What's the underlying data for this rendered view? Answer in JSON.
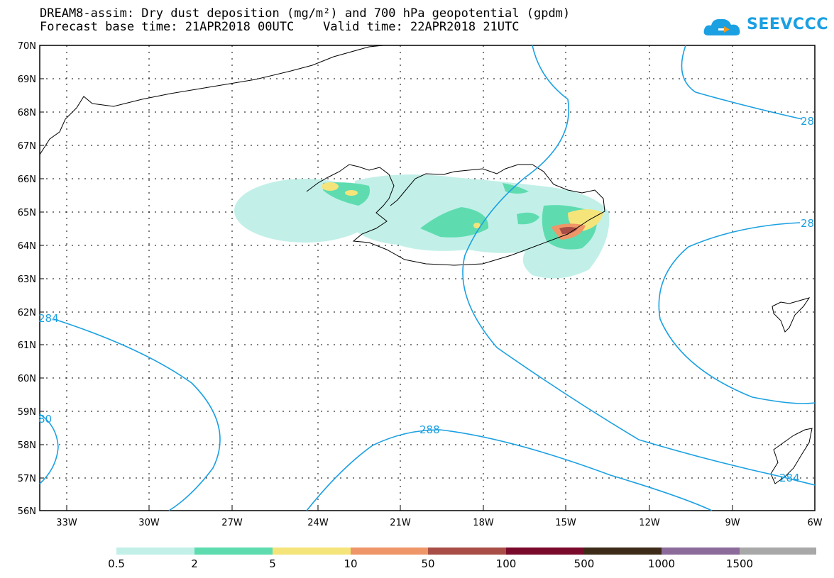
{
  "header": {
    "title_line1": "DREAM8-assim: Dry dust deposition (mg/m²) and 700 hPa geopotential (gpdm)",
    "title_line2": "Forecast base time: 21APR2018 00UTC    Valid time: 22APR2018 21UTC"
  },
  "logo": {
    "text": "SEEVCCC",
    "icon": "cloud-icon",
    "color": "#1ba0e2"
  },
  "map": {
    "lon_labels": [
      "33W",
      "30W",
      "27W",
      "24W",
      "21W",
      "18W",
      "15W",
      "12W",
      "9W",
      "6W"
    ],
    "lat_labels": [
      "70N",
      "69N",
      "68N",
      "67N",
      "66N",
      "65N",
      "64N",
      "63N",
      "62N",
      "61N",
      "60N",
      "59N",
      "58N",
      "57N",
      "56N"
    ],
    "contour_labels": [
      "284",
      "80",
      "288",
      "284",
      "28",
      "28"
    ],
    "contour_color": "#1ba0e2"
  },
  "colorbar": {
    "labels": [
      "0.5",
      "2",
      "5",
      "10",
      "50",
      "100",
      "500",
      "1000",
      "1500"
    ],
    "colors": [
      "#c2f0e8",
      "#5edcb0",
      "#f5e47a",
      "#ef9668",
      "#a84e46",
      "#7a0a2c",
      "#3d2b18",
      "#8c6b9a",
      "#a8a8a8"
    ]
  }
}
